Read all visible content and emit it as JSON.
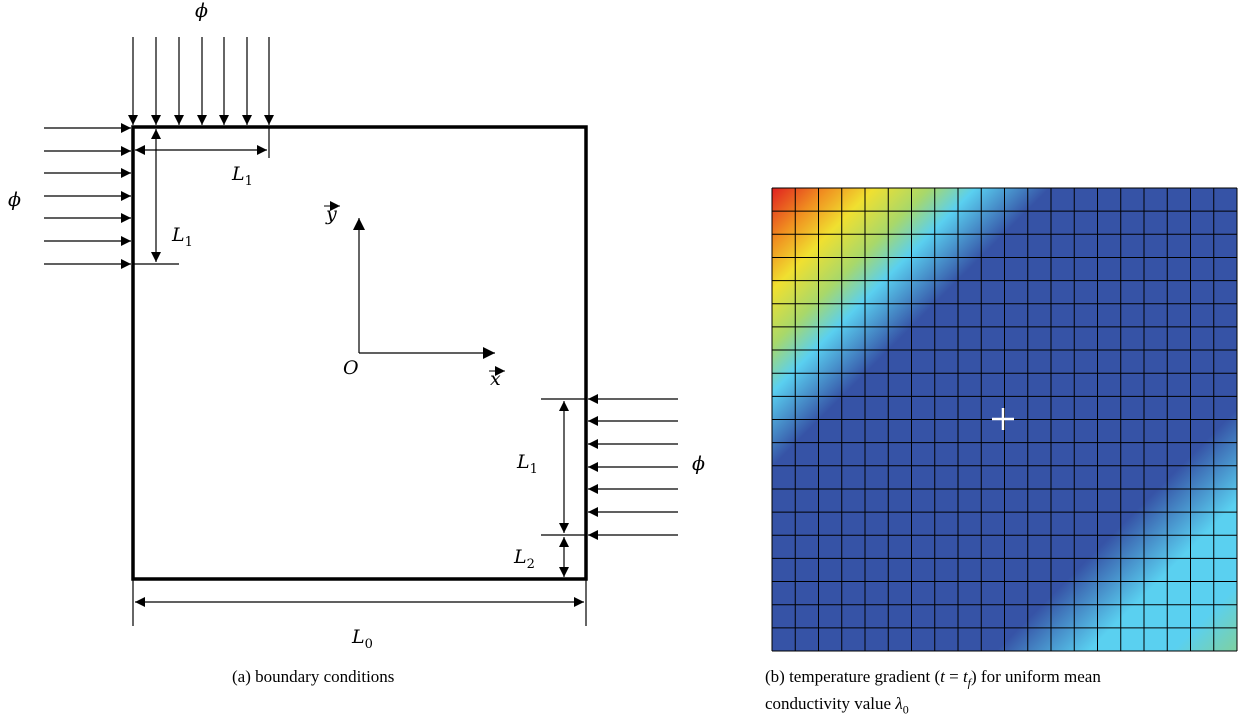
{
  "panel_a": {
    "flux_label": "ϕ",
    "length_L1": "L",
    "length_L1_sub": "1",
    "length_L2": "L",
    "length_L2_sub": "2",
    "length_L0": "L",
    "length_L0_sub": "0",
    "axis_x_label": "x",
    "axis_y_label": "y",
    "origin_label": "O",
    "caption": "(a) boundary conditions"
  },
  "panel_b": {
    "caption_line1_pre": "(b)  temperature gradient (",
    "caption_t": "t",
    "caption_eq": " = ",
    "caption_tf": "t",
    "caption_tf_sub": "f",
    "caption_line1_post": ") for uniform mean",
    "caption_line2_pre": "conductivity value ",
    "caption_lambda": "λ",
    "caption_lambda_sub": "0",
    "grid_cells": 20,
    "colormap": [
      "#2f4aa8",
      "#5ad0f0",
      "#a8d86a",
      "#f0e030",
      "#f09020",
      "#e02020"
    ]
  },
  "colors": {
    "line": "#000000",
    "center_marker": "#ffffff",
    "background_low": "#3653a6"
  }
}
